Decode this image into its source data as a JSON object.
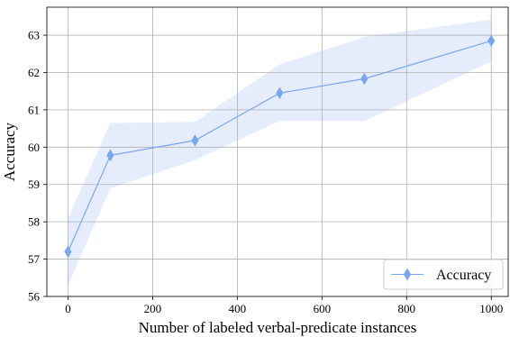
{
  "chart_data": {
    "type": "line",
    "xlabel": "Number of labeled verbal-predicate instances",
    "ylabel": "Accuracy",
    "xlim": [
      -50,
      1040
    ],
    "ylim": [
      56,
      63.75
    ],
    "xticks": [
      0,
      200,
      400,
      600,
      800,
      1000
    ],
    "yticks": [
      56,
      57,
      58,
      59,
      60,
      61,
      62,
      63
    ],
    "grid": true,
    "legend_position": "lower-right",
    "series": [
      {
        "name": "Accuracy",
        "color": "#7aa6f0",
        "marker": "thin_diamond",
        "band_color": "#dfe9fd",
        "x": [
          0,
          100,
          300,
          500,
          700,
          1000
        ],
        "y": [
          57.2,
          59.78,
          60.18,
          61.45,
          61.83,
          62.85
        ],
        "y_lower": [
          56.3,
          58.9,
          59.65,
          60.7,
          60.7,
          62.3
        ],
        "y_upper": [
          58.1,
          60.65,
          60.68,
          62.22,
          62.95,
          63.42
        ]
      }
    ]
  }
}
